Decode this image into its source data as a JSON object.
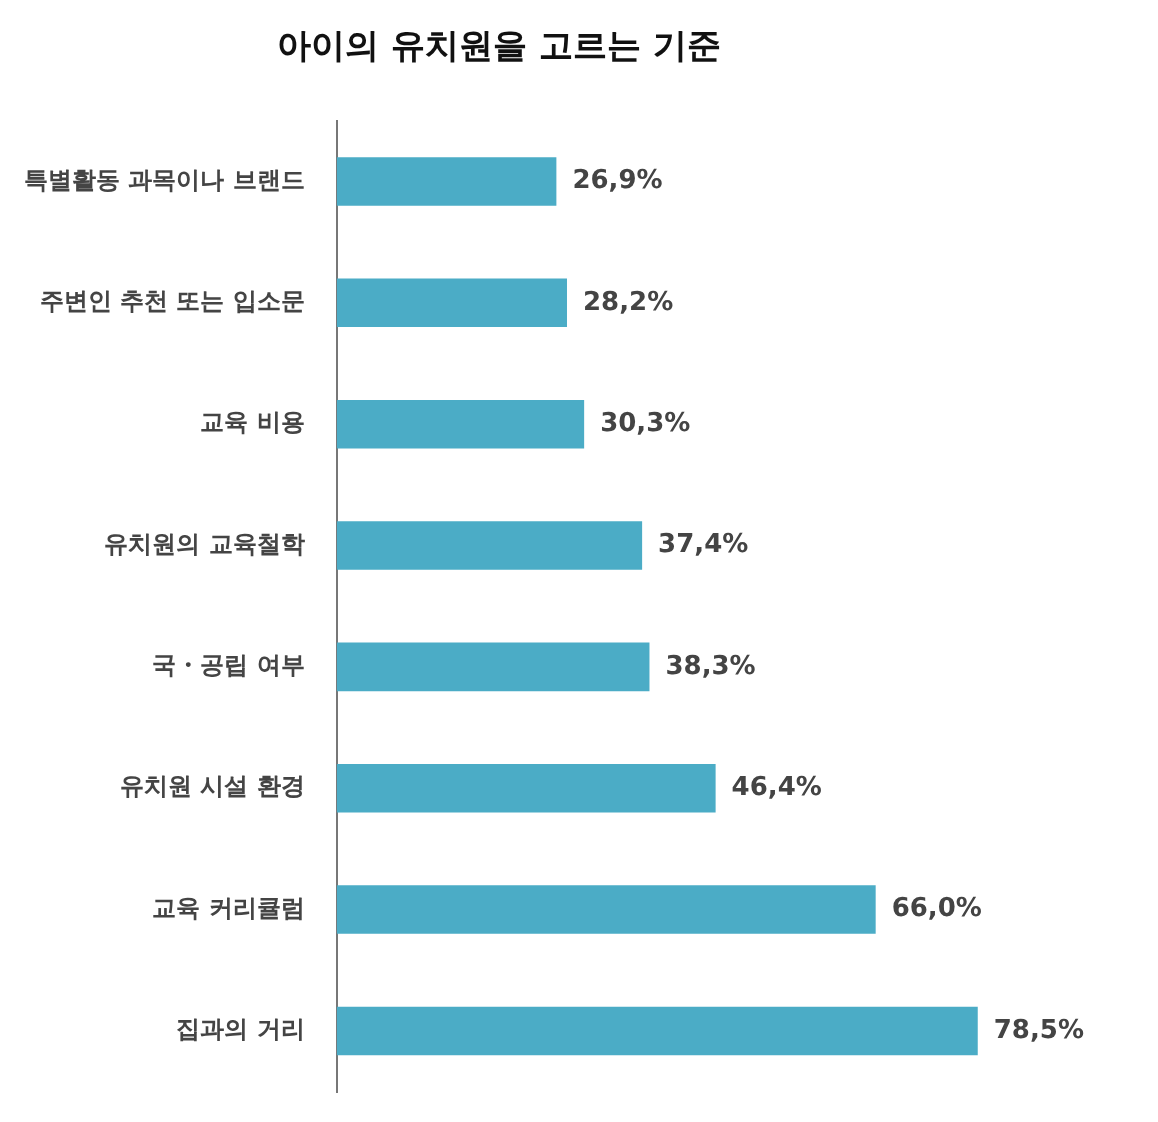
{
  "chart_data": {
    "type": "bar",
    "orientation": "horizontal",
    "title": "아이의 유치원을 고르는 기준",
    "categories": [
      "특별활동 과목이나 브랜드",
      "주변인 추천 또는 입소문",
      "교육 비용",
      "유치원의 교육철학",
      "국・공립 여부",
      "유치원 시설 환경",
      "교육 커리큘럼",
      "집과의 거리"
    ],
    "values": [
      26.9,
      28.2,
      30.3,
      37.4,
      38.3,
      46.4,
      66.0,
      78.5
    ],
    "value_labels": [
      "26,9%",
      "28,2%",
      "30,3%",
      "37,4%",
      "38,3%",
      "46,4%",
      "66,0%",
      "78,5%"
    ],
    "color": "#4bacc6",
    "legend": false,
    "tick_labels": "y"
  }
}
